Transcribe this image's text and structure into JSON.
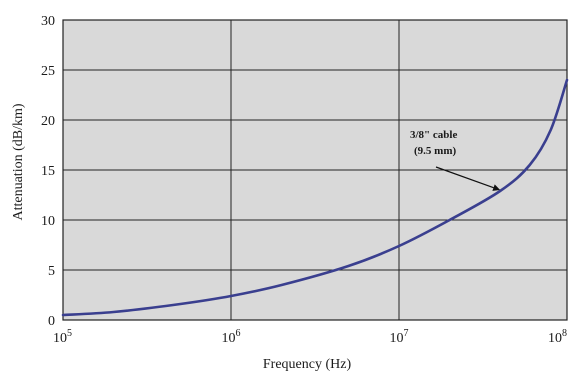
{
  "chart_data": {
    "type": "line",
    "title": "",
    "xlabel": "Frequency (Hz)",
    "ylabel": "Attenuation (dB/km)",
    "x_scale": "log",
    "xlim": [
      100000,
      100000000
    ],
    "ylim": [
      0,
      30
    ],
    "grid": true,
    "x_ticks": [
      {
        "value": 100000,
        "base": "10",
        "exp": "5"
      },
      {
        "value": 1000000,
        "base": "10",
        "exp": "6"
      },
      {
        "value": 10000000,
        "base": "10",
        "exp": "7"
      },
      {
        "value": 100000000,
        "base": "10",
        "exp": "8"
      }
    ],
    "y_ticks": [
      0,
      5,
      10,
      15,
      20,
      25,
      30
    ],
    "series": [
      {
        "color": "#3a3f8f",
        "x": [
          100000,
          200000,
          500000,
          1000000,
          2000000,
          5000000,
          10000000,
          20000000,
          40000000,
          60000000,
          80000000,
          100000000
        ],
        "y": [
          0.5,
          0.8,
          1.6,
          2.4,
          3.5,
          5.4,
          7.4,
          10.0,
          12.9,
          15.5,
          19.0,
          24.0
        ]
      }
    ],
    "annotations": [
      {
        "line1": "3/8\" cable",
        "line2": "(9.5 mm)",
        "x": 40000000,
        "y": 13.0
      }
    ],
    "colors": {
      "plot_background": "#d9d9d9",
      "grid": "#222222",
      "series": "#3a3f8f"
    }
  }
}
